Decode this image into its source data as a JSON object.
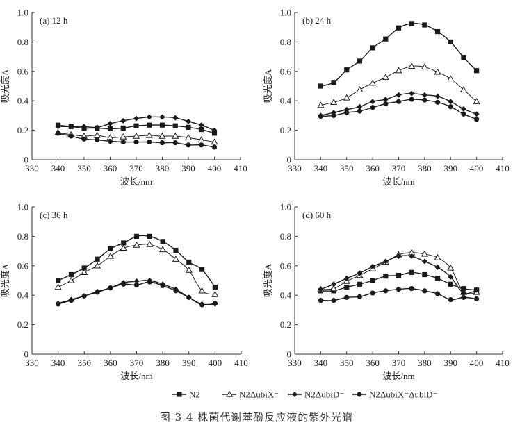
{
  "figure": {
    "caption": "图 3   4 株菌代谢苯酚反应液的紫外光谱"
  },
  "legend": [
    {
      "name": "N2",
      "marker": "square"
    },
    {
      "name": "N2ΔubiX⁻",
      "marker": "triangle-open"
    },
    {
      "name": "N2ΔubiD⁻",
      "marker": "diamond"
    },
    {
      "name": "N2ΔubiX⁻ΔubiD⁻",
      "marker": "circle"
    }
  ],
  "chart_data": [
    {
      "type": "line",
      "title": "(a) 12 h",
      "xlabel": "波长/nm",
      "ylabel": "吸光度A",
      "xlim": [
        330,
        410
      ],
      "ylim": [
        0,
        1.0
      ],
      "xticks": [
        330,
        340,
        350,
        360,
        370,
        380,
        390,
        400,
        410
      ],
      "yticks": [
        0,
        0.2,
        0.4,
        0.6,
        0.8,
        1.0
      ],
      "ytick_labels": [
        "0",
        "0.2",
        "0.4",
        "0.6",
        "0.8",
        "1.0"
      ],
      "grid": false,
      "x": [
        340,
        345,
        350,
        355,
        360,
        365,
        370,
        375,
        380,
        385,
        390,
        395,
        400
      ],
      "series": [
        {
          "name": "N2",
          "marker": "square",
          "values": [
            0.235,
            0.225,
            0.215,
            0.215,
            0.21,
            0.215,
            0.23,
            0.235,
            0.235,
            0.23,
            0.22,
            0.205,
            0.18
          ]
        },
        {
          "name": "N2ΔubiX⁻",
          "marker": "triangle-open",
          "values": [
            0.185,
            0.17,
            0.16,
            0.165,
            0.15,
            0.155,
            0.16,
            0.165,
            0.16,
            0.16,
            0.15,
            0.135,
            0.12
          ]
        },
        {
          "name": "N2ΔubiD⁻",
          "marker": "diamond",
          "values": [
            0.225,
            0.225,
            0.225,
            0.22,
            0.245,
            0.265,
            0.28,
            0.29,
            0.29,
            0.285,
            0.26,
            0.235,
            0.2
          ]
        },
        {
          "name": "N2ΔubiX⁻ΔubiD⁻",
          "marker": "circle",
          "values": [
            0.18,
            0.16,
            0.14,
            0.135,
            0.125,
            0.12,
            0.12,
            0.12,
            0.115,
            0.115,
            0.1,
            0.1,
            0.085
          ]
        }
      ]
    },
    {
      "type": "line",
      "title": "(b) 24 h",
      "xlabel": "波长/nm",
      "ylabel": "吸光度A",
      "xlim": [
        330,
        410
      ],
      "ylim": [
        0,
        1.0
      ],
      "xticks": [
        330,
        340,
        350,
        360,
        370,
        380,
        390,
        400,
        410
      ],
      "yticks": [
        0,
        0.2,
        0.4,
        0.6,
        0.8,
        1.0
      ],
      "ytick_labels": [
        "0",
        "0.2",
        "0.4",
        "0.6",
        "0.8",
        "1.0"
      ],
      "grid": false,
      "x": [
        340,
        345,
        350,
        355,
        360,
        365,
        370,
        375,
        380,
        385,
        390,
        395,
        400
      ],
      "series": [
        {
          "name": "N2",
          "marker": "square",
          "values": [
            0.5,
            0.525,
            0.61,
            0.67,
            0.76,
            0.82,
            0.895,
            0.925,
            0.915,
            0.87,
            0.8,
            0.695,
            0.605
          ]
        },
        {
          "name": "N2ΔubiX⁻",
          "marker": "triangle-open",
          "values": [
            0.37,
            0.39,
            0.42,
            0.475,
            0.52,
            0.56,
            0.605,
            0.635,
            0.63,
            0.595,
            0.55,
            0.475,
            0.395
          ]
        },
        {
          "name": "N2ΔubiD⁻",
          "marker": "diamond",
          "values": [
            0.3,
            0.32,
            0.34,
            0.36,
            0.395,
            0.41,
            0.44,
            0.45,
            0.44,
            0.43,
            0.395,
            0.345,
            0.31
          ]
        },
        {
          "name": "N2ΔubiX⁻ΔubiD⁻",
          "marker": "circle",
          "values": [
            0.295,
            0.3,
            0.32,
            0.33,
            0.355,
            0.38,
            0.395,
            0.41,
            0.405,
            0.39,
            0.36,
            0.31,
            0.275
          ]
        }
      ]
    },
    {
      "type": "line",
      "title": "(c) 36 h",
      "xlabel": "波长/nm",
      "ylabel": "吸光度A",
      "xlim": [
        330,
        410
      ],
      "ylim": [
        0,
        1.0
      ],
      "xticks": [
        330,
        340,
        350,
        360,
        370,
        380,
        390,
        400,
        410
      ],
      "yticks": [
        0,
        0.2,
        0.4,
        0.6,
        0.8,
        1.0
      ],
      "ytick_labels": [
        "0",
        "0.2",
        "0.4",
        "0.6",
        "0.8",
        "1.0"
      ],
      "grid": false,
      "x": [
        340,
        345,
        350,
        355,
        360,
        365,
        370,
        375,
        380,
        385,
        390,
        395,
        400
      ],
      "series": [
        {
          "name": "N2",
          "marker": "square",
          "values": [
            0.5,
            0.54,
            0.585,
            0.645,
            0.715,
            0.755,
            0.8,
            0.8,
            0.765,
            0.705,
            0.625,
            0.575,
            0.455
          ]
        },
        {
          "name": "N2ΔubiX⁻",
          "marker": "triangle-open",
          "values": [
            0.455,
            0.5,
            0.555,
            0.6,
            0.665,
            0.72,
            0.74,
            0.745,
            0.71,
            0.645,
            0.57,
            0.43,
            0.405
          ]
        },
        {
          "name": "N2ΔubiD⁻",
          "marker": "diamond",
          "values": [
            0.345,
            0.37,
            0.395,
            0.425,
            0.45,
            0.485,
            0.495,
            0.5,
            0.475,
            0.44,
            0.385,
            0.34,
            0.34
          ]
        },
        {
          "name": "N2ΔubiX⁻ΔubiD⁻",
          "marker": "circle",
          "values": [
            0.34,
            0.365,
            0.395,
            0.42,
            0.45,
            0.475,
            0.47,
            0.49,
            0.465,
            0.43,
            0.385,
            0.335,
            0.345
          ]
        }
      ]
    },
    {
      "type": "line",
      "title": "(d) 60 h",
      "xlabel": "波长/nm",
      "ylabel": "吸光度A",
      "xlim": [
        330,
        410
      ],
      "ylim": [
        0,
        1.0
      ],
      "xticks": [
        330,
        340,
        350,
        360,
        370,
        380,
        390,
        400,
        410
      ],
      "yticks": [
        0,
        0.2,
        0.4,
        0.6,
        0.8,
        1.0
      ],
      "ytick_labels": [
        "0",
        "0.2",
        "0.4",
        "0.6",
        "0.8",
        "1.0"
      ],
      "grid": false,
      "x": [
        340,
        345,
        350,
        355,
        360,
        365,
        370,
        375,
        380,
        385,
        390,
        395,
        400
      ],
      "series": [
        {
          "name": "N2",
          "marker": "square",
          "values": [
            0.43,
            0.43,
            0.455,
            0.475,
            0.5,
            0.53,
            0.535,
            0.555,
            0.54,
            0.515,
            0.475,
            0.445,
            0.435
          ]
        },
        {
          "name": "N2ΔubiX⁻",
          "marker": "triangle-open",
          "values": [
            0.44,
            0.445,
            0.495,
            0.535,
            0.58,
            0.625,
            0.675,
            0.69,
            0.68,
            0.655,
            0.585,
            0.42,
            0.42
          ]
        },
        {
          "name": "N2ΔubiD⁻",
          "marker": "diamond",
          "values": [
            0.44,
            0.475,
            0.515,
            0.55,
            0.595,
            0.63,
            0.665,
            0.665,
            0.63,
            0.59,
            0.525,
            0.415,
            0.435
          ]
        },
        {
          "name": "N2ΔubiX⁻ΔubiD⁻",
          "marker": "circle",
          "values": [
            0.365,
            0.365,
            0.385,
            0.39,
            0.415,
            0.43,
            0.44,
            0.445,
            0.43,
            0.41,
            0.37,
            0.385,
            0.375
          ]
        }
      ]
    }
  ]
}
